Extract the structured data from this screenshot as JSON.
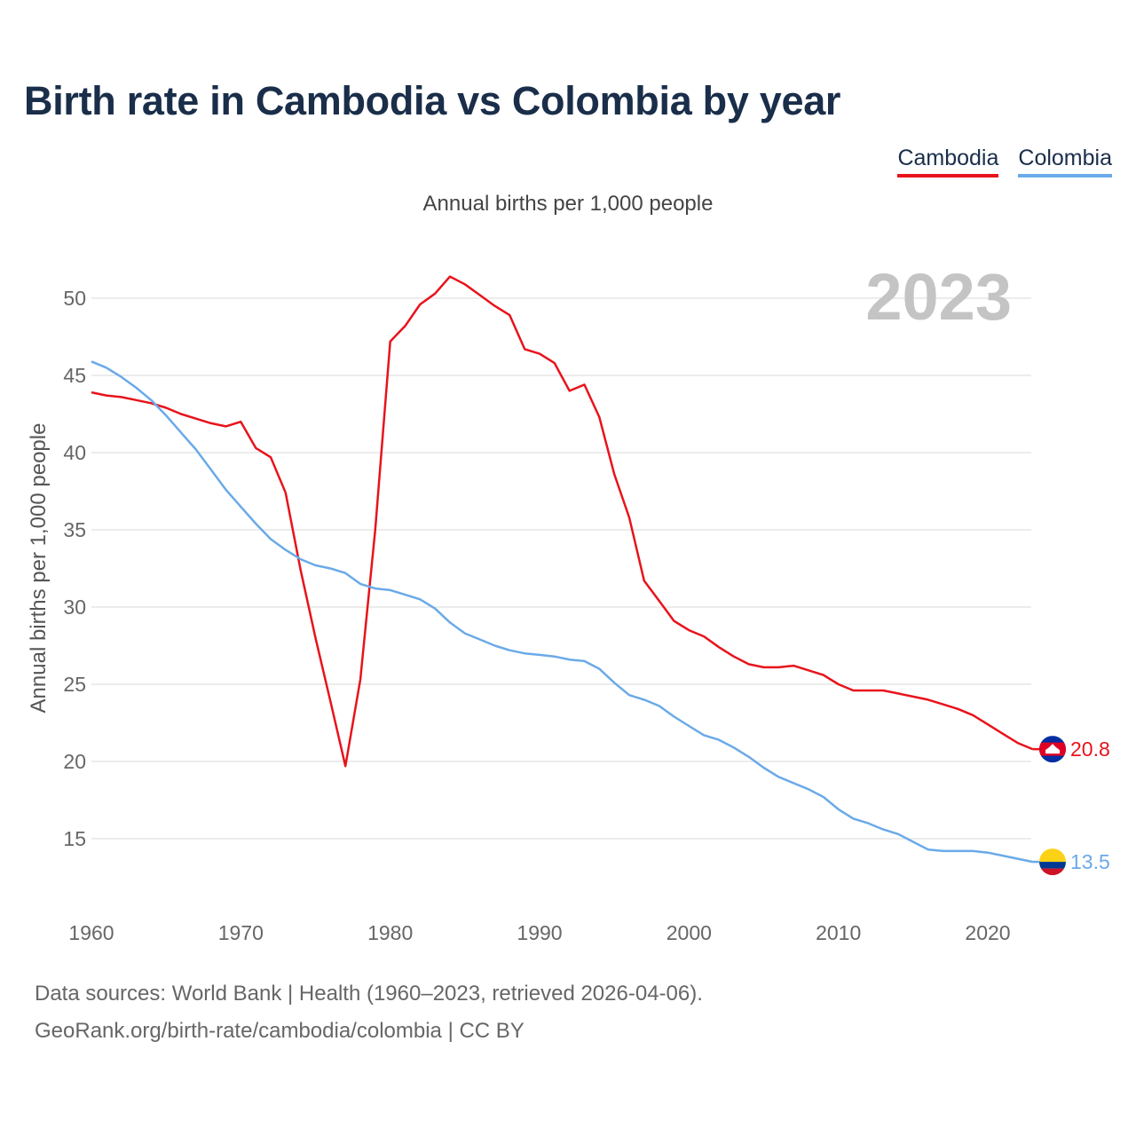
{
  "title": "Birth rate in Cambodia vs Colombia by year",
  "subtitle": "Annual births per 1,000 people",
  "year_watermark": "2023",
  "sources": [
    "Data sources: World Bank | Health (1960–2023, retrieved 2026-04-06).",
    "GeoRank.org/birth-rate/cambodia/colombia | CC BY"
  ],
  "chart_data": {
    "type": "line",
    "title": "Birth rate in Cambodia vs Colombia by year",
    "xlabel": "",
    "ylabel": "Annual births per 1,000 people",
    "xlim": [
      1960,
      2023
    ],
    "ylim": [
      13,
      52
    ],
    "x_ticks": [
      1960,
      1970,
      1980,
      1990,
      2000,
      2010,
      2020
    ],
    "y_ticks": [
      15,
      20,
      25,
      30,
      35,
      40,
      45,
      50
    ],
    "grid": true,
    "legend_position": "top-right",
    "x": [
      1960,
      1961,
      1962,
      1963,
      1964,
      1965,
      1966,
      1967,
      1968,
      1969,
      1970,
      1971,
      1972,
      1973,
      1974,
      1975,
      1976,
      1977,
      1978,
      1979,
      1980,
      1981,
      1982,
      1983,
      1984,
      1985,
      1986,
      1987,
      1988,
      1989,
      1990,
      1991,
      1992,
      1993,
      1994,
      1995,
      1996,
      1997,
      1998,
      1999,
      2000,
      2001,
      2002,
      2003,
      2004,
      2005,
      2006,
      2007,
      2008,
      2009,
      2010,
      2011,
      2012,
      2013,
      2014,
      2015,
      2016,
      2017,
      2018,
      2019,
      2020,
      2021,
      2022,
      2023
    ],
    "series": [
      {
        "name": "Cambodia",
        "color": "#e8131b",
        "end_label": "20.8",
        "values": [
          43.9,
          43.7,
          43.6,
          43.4,
          43.2,
          42.9,
          42.5,
          42.2,
          41.9,
          41.7,
          42.0,
          40.3,
          39.7,
          37.4,
          32.4,
          28.0,
          23.9,
          19.7,
          25.3,
          35.0,
          47.2,
          48.2,
          49.6,
          50.3,
          51.4,
          50.9,
          50.2,
          49.5,
          48.9,
          46.7,
          46.4,
          45.8,
          44.0,
          44.4,
          42.3,
          38.6,
          35.8,
          31.7,
          30.4,
          29.1,
          28.5,
          28.1,
          27.4,
          26.8,
          26.3,
          26.1,
          26.1,
          26.2,
          25.9,
          25.6,
          25.0,
          24.6,
          24.6,
          24.6,
          24.4,
          24.2,
          24.0,
          23.7,
          23.4,
          23.0,
          22.4,
          21.8,
          21.2,
          20.8
        ]
      },
      {
        "name": "Colombia",
        "color": "#6aaae8",
        "end_label": "13.5",
        "values": [
          45.9,
          45.5,
          44.9,
          44.2,
          43.4,
          42.4,
          41.3,
          40.2,
          38.9,
          37.6,
          36.5,
          35.4,
          34.4,
          33.7,
          33.1,
          32.7,
          32.5,
          32.2,
          31.5,
          31.2,
          31.1,
          30.8,
          30.5,
          29.9,
          29.0,
          28.3,
          27.9,
          27.5,
          27.2,
          27.0,
          26.9,
          26.8,
          26.6,
          26.5,
          26.0,
          25.1,
          24.3,
          24.0,
          23.6,
          22.9,
          22.3,
          21.7,
          21.4,
          20.9,
          20.3,
          19.6,
          19.0,
          18.6,
          18.2,
          17.7,
          16.9,
          16.3,
          16.0,
          15.6,
          15.3,
          14.8,
          14.3,
          14.2,
          14.2,
          14.2,
          14.1,
          13.9,
          13.7,
          13.5
        ]
      }
    ]
  }
}
